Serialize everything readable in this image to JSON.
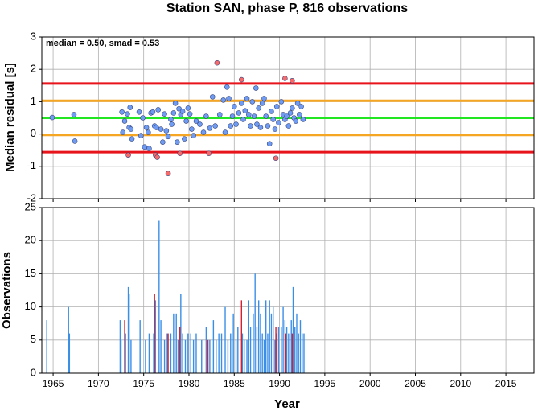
{
  "chart_data": [
    {
      "type": "scatter",
      "title": "Station SAN, phase P, 816 observations",
      "ylabel": "Median residual [s]",
      "annotation": "median = 0.50, smad = 0.53",
      "ylim": [
        -2,
        3
      ],
      "yticks": [
        -2,
        -1,
        0,
        1,
        2,
        3
      ],
      "grid": true,
      "reference_lines": [
        {
          "value": 1.56,
          "color": "#e8141c"
        },
        {
          "value": 1.03,
          "color": "#f5a623"
        },
        {
          "value": 0.5,
          "color": "#22e622"
        },
        {
          "value": -0.03,
          "color": "#f5a623"
        },
        {
          "value": -0.56,
          "color": "#e8141c"
        }
      ],
      "series": [
        {
          "color": "#6f9bf2",
          "x": [
            1964.9,
            1967.3,
            1967.4,
            1972.6,
            1972.7,
            1972.9,
            1973.2,
            1973.4,
            1973.5,
            1973.6,
            1973.7,
            1974.5,
            1974.7,
            1974.9,
            1975.1,
            1975.3,
            1975.5,
            1975.6,
            1975.8,
            1976.0,
            1976.2,
            1976.4,
            1976.6,
            1976.9,
            1977.1,
            1977.3,
            1977.5,
            1977.7,
            1978.0,
            1978.1,
            1978.3,
            1978.5,
            1978.7,
            1978.9,
            1979.1,
            1979.3,
            1979.5,
            1979.7,
            1979.9,
            1980.1,
            1980.3,
            1980.5,
            1980.8,
            1981.2,
            1981.6,
            1981.9,
            1982.3,
            1982.6,
            1982.9,
            1983.4,
            1983.8,
            1984.0,
            1984.2,
            1984.4,
            1984.6,
            1984.8,
            1985.0,
            1985.2,
            1985.5,
            1985.8,
            1986.0,
            1986.2,
            1986.4,
            1986.6,
            1986.8,
            1987.0,
            1987.2,
            1987.4,
            1987.5,
            1987.7,
            1987.9,
            1988.1,
            1988.3,
            1988.5,
            1988.7,
            1988.9,
            1989.1,
            1989.3,
            1989.5,
            1989.7,
            1989.9,
            1990.2,
            1990.4,
            1990.6,
            1990.8,
            1991.0,
            1991.2,
            1991.4,
            1991.6,
            1991.8,
            1992.0,
            1992.2,
            1992.4,
            1992.6
          ],
          "values": [
            0.51,
            0.6,
            -0.22,
            0.68,
            0.05,
            0.4,
            0.62,
            0.2,
            0.82,
            0.15,
            -0.15,
            0.68,
            -0.05,
            0.5,
            -0.4,
            0.2,
            0.05,
            -0.45,
            0.65,
            0.68,
            0.25,
            0.2,
            0.75,
            0.15,
            -0.25,
            0.62,
            0.1,
            -0.08,
            0.45,
            0.3,
            0.65,
            0.95,
            -0.25,
            0.78,
            0.6,
            0.7,
            -0.15,
            0.4,
            0.8,
            0.62,
            0.15,
            -0.05,
            0.4,
            0.3,
            0.05,
            0.55,
            0.18,
            1.15,
            0.25,
            0.6,
            1.05,
            0.05,
            1.45,
            1.1,
            0.25,
            0.55,
            0.85,
            0.3,
            0.65,
            0.95,
            0.45,
            0.72,
            1.1,
            0.6,
            0.25,
            1.0,
            0.55,
            1.42,
            0.3,
            0.8,
            0.2,
            0.95,
            1.1,
            0.55,
            0.25,
            -0.3,
            0.7,
            0.45,
            0.15,
            0.85,
            0.35,
            1.0,
            0.6,
            0.45,
            0.55,
            0.25,
            0.65,
            0.8,
            0.5,
            0.4,
            0.95,
            0.6,
            0.85,
            0.45
          ]
        },
        {
          "color": "#f86a6a",
          "x": [
            1973.3,
            1976.3,
            1976.5,
            1977.7,
            1979.0,
            1982.2,
            1983.1,
            1985.8,
            1989.6,
            1990.6,
            1991.4
          ],
          "values": [
            -0.65,
            -0.65,
            -0.72,
            -1.22,
            -0.6,
            -0.6,
            2.2,
            1.68,
            -0.75,
            1.72,
            1.65
          ]
        }
      ]
    },
    {
      "type": "bar",
      "ylabel": "Observations",
      "xlabel": "Year",
      "xlim": [
        1963.75,
        2018.1
      ],
      "xticks": [
        1965,
        1970,
        1975,
        1980,
        1985,
        1990,
        1995,
        2000,
        2005,
        2010,
        2015
      ],
      "ylim": [
        0,
        25
      ],
      "yticks": [
        0,
        5,
        10,
        15,
        20,
        25
      ],
      "grid": true,
      "series": [
        {
          "color": "#3a8ee6",
          "x": [
            1964.3,
            1966.7,
            1966.8,
            1972.4,
            1972.5,
            1973.0,
            1973.3,
            1973.4,
            1973.6,
            1974.6,
            1975.2,
            1975.6,
            1976.1,
            1976.3,
            1976.7,
            1976.9,
            1977.3,
            1977.6,
            1978.0,
            1978.3,
            1978.6,
            1978.8,
            1979.1,
            1979.3,
            1979.6,
            1979.9,
            1980.2,
            1980.5,
            1980.8,
            1981.4,
            1981.9,
            1982.3,
            1982.7,
            1983.0,
            1983.3,
            1983.6,
            1984.0,
            1984.3,
            1984.6,
            1984.9,
            1985.2,
            1985.4,
            1985.9,
            1986.1,
            1986.4,
            1986.6,
            1986.8,
            1987.1,
            1987.3,
            1987.5,
            1987.7,
            1987.9,
            1988.1,
            1988.3,
            1988.5,
            1988.7,
            1988.9,
            1989.1,
            1989.3,
            1989.5,
            1989.7,
            1989.9,
            1990.2,
            1990.4,
            1990.6,
            1990.8,
            1991.0,
            1991.3,
            1991.5,
            1991.7,
            1991.9,
            1992.1,
            1992.3,
            1992.5,
            1992.7
          ],
          "values": [
            8,
            10,
            6,
            8,
            5,
            6,
            13,
            12,
            5,
            8,
            5,
            6,
            6,
            11,
            23,
            8,
            5,
            6,
            6,
            9,
            9,
            5,
            12,
            6,
            5,
            6,
            6,
            5,
            6,
            5,
            7,
            5,
            8,
            5,
            6,
            6,
            10,
            5,
            6,
            9,
            5,
            7,
            6,
            5,
            5,
            11,
            7,
            9,
            15,
            7,
            11,
            9,
            6,
            5,
            11,
            6,
            11,
            9,
            10,
            5,
            6,
            7,
            7,
            10,
            8,
            7,
            6,
            8,
            13,
            7,
            9,
            6,
            8,
            6,
            6
          ]
        },
        {
          "color": "#d42030",
          "x": [
            1972.9,
            1976.2,
            1977.7,
            1979.0,
            1982.1,
            1985.8,
            1989.6,
            1990.7,
            1991.4
          ],
          "values": [
            8,
            12,
            6,
            7,
            5,
            11,
            7,
            6,
            6
          ]
        }
      ]
    }
  ]
}
